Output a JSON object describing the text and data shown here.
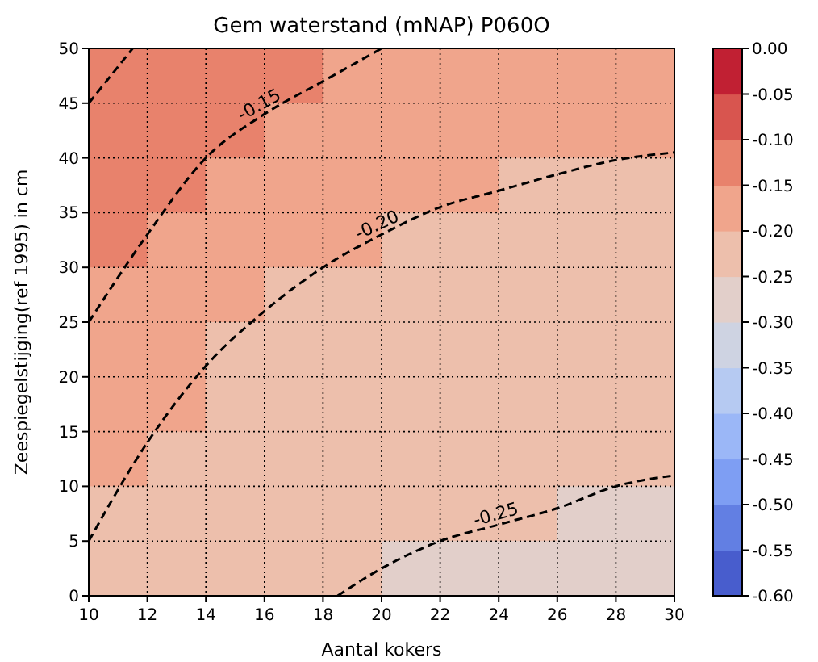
{
  "chart_data": {
    "type": "heatmap",
    "title": "Gem waterstand (mNAP) P060O",
    "xlabel": "Aantal kokers",
    "ylabel": "Zeespiegelstijging(ref 1995) in cm",
    "x": [
      11,
      13,
      15,
      17,
      19,
      21,
      23,
      25,
      27,
      29
    ],
    "cells": [
      [
        -0.125,
        -0.125,
        -0.125,
        -0.125,
        -0.175,
        -0.175,
        -0.175,
        -0.175,
        -0.175,
        -0.175
      ],
      [
        -0.125,
        -0.125,
        -0.125,
        -0.175,
        -0.175,
        -0.175,
        -0.175,
        -0.175,
        -0.175,
        -0.175
      ],
      [
        -0.125,
        -0.125,
        -0.175,
        -0.175,
        -0.175,
        -0.175,
        -0.175,
        -0.225,
        -0.225,
        -0.225
      ],
      [
        -0.125,
        -0.175,
        -0.175,
        -0.175,
        -0.175,
        -0.225,
        -0.225,
        -0.225,
        -0.225,
        -0.225
      ],
      [
        -0.175,
        -0.175,
        -0.175,
        -0.225,
        -0.225,
        -0.225,
        -0.225,
        -0.225,
        -0.225,
        -0.225
      ],
      [
        -0.175,
        -0.175,
        -0.225,
        -0.225,
        -0.225,
        -0.225,
        -0.225,
        -0.225,
        -0.225,
        -0.225
      ],
      [
        -0.175,
        -0.175,
        -0.225,
        -0.225,
        -0.225,
        -0.225,
        -0.225,
        -0.225,
        -0.225,
        -0.225
      ],
      [
        -0.175,
        -0.225,
        -0.225,
        -0.225,
        -0.225,
        -0.225,
        -0.225,
        -0.225,
        -0.225,
        -0.225
      ],
      [
        -0.225,
        -0.225,
        -0.225,
        -0.225,
        -0.225,
        -0.225,
        -0.225,
        -0.225,
        -0.275,
        -0.275
      ],
      [
        -0.225,
        -0.225,
        -0.225,
        -0.225,
        -0.225,
        -0.275,
        -0.275,
        -0.275,
        -0.275,
        -0.275
      ]
    ],
    "series": [
      {
        "type": "line",
        "color": "#000000",
        "x": [
          10,
          11.5
        ],
        "values": [
          45,
          50
        ]
      },
      {
        "type": "line",
        "name": "-0.15",
        "color": "#000000",
        "x": [
          10,
          12,
          14,
          16,
          18,
          20
        ],
        "values": [
          25,
          33,
          40,
          44,
          47,
          50
        ]
      },
      {
        "type": "line",
        "name": "-0.20",
        "color": "#000000",
        "x": [
          10,
          12,
          14,
          16,
          18,
          20,
          22,
          24,
          26,
          28,
          30
        ],
        "values": [
          5,
          14,
          21,
          26,
          30,
          33,
          35.5,
          37,
          38.5,
          39.8,
          40.5
        ]
      },
      {
        "type": "line",
        "name": "-0.25",
        "color": "#000000",
        "x": [
          18.5,
          20,
          22,
          24,
          26,
          28,
          30
        ],
        "values": [
          0,
          2.5,
          5,
          6.5,
          8,
          10,
          11
        ]
      }
    ],
    "line_style": "dashed",
    "xlim": [
      10,
      30
    ],
    "xticks": [
      10,
      12,
      14,
      16,
      18,
      20,
      22,
      24,
      26,
      28,
      30
    ],
    "ylim": [
      0,
      50
    ],
    "yticks": [
      0,
      5,
      10,
      15,
      20,
      25,
      30,
      35,
      40,
      45,
      50
    ],
    "grid": true,
    "clim": [
      -0.6,
      0
    ],
    "cticks": [
      {
        "value": -0.6,
        "label": "-0.60"
      },
      {
        "value": -0.55,
        "label": "-0.55"
      },
      {
        "value": -0.5,
        "label": "-0.50"
      },
      {
        "value": -0.45,
        "label": "-0.45"
      },
      {
        "value": -0.4,
        "label": "-0.40"
      },
      {
        "value": -0.35,
        "label": "-0.35"
      },
      {
        "value": -0.3,
        "label": "-0.30"
      },
      {
        "value": -0.25,
        "label": "-0.25"
      },
      {
        "value": -0.2,
        "label": "-0.20"
      },
      {
        "value": -0.15,
        "label": "-0.15"
      },
      {
        "value": -0.1,
        "label": "-0.10"
      },
      {
        "value": -0.05,
        "label": "-0.05"
      },
      {
        "value": 0,
        "label": "0.00"
      }
    ]
  }
}
